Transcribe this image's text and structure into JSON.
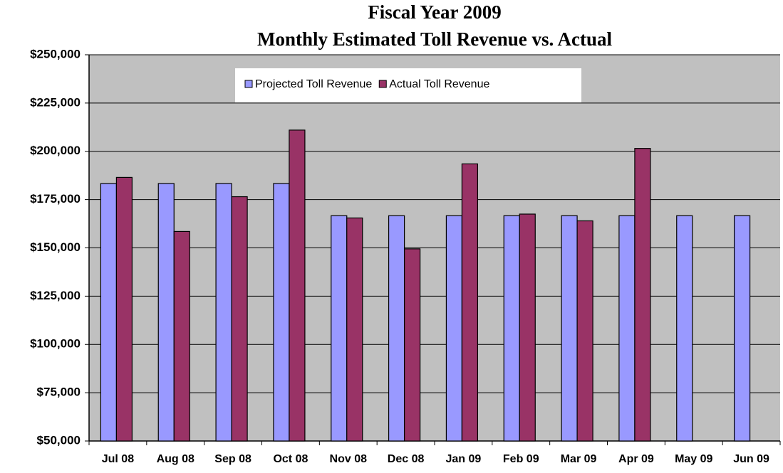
{
  "chart_data": {
    "type": "bar",
    "title": [
      "Fiscal Year 2009",
      "Monthly Estimated Toll Revenue vs. Actual"
    ],
    "categories": [
      "Jul 08",
      "Aug 08",
      "Sep 08",
      "Oct 08",
      "Nov 08",
      "Dec 08",
      "Jan 09",
      "Feb 09",
      "Mar 09",
      "Apr 09",
      "May 09",
      "Jun 09"
    ],
    "series": [
      {
        "name": "Projected Toll Revenue",
        "color": "#9999ff",
        "values": [
          183333,
          183333,
          183333,
          183333,
          166667,
          166667,
          166667,
          166667,
          166667,
          166667,
          166667,
          166667
        ]
      },
      {
        "name": "Actual Toll Revenue",
        "color": "#993366",
        "values": [
          186500,
          158500,
          176500,
          211000,
          165500,
          149500,
          193500,
          167500,
          164000,
          201500,
          null,
          null
        ]
      }
    ],
    "ylim": [
      50000,
      250000
    ],
    "yticks": [
      {
        "value": 50000,
        "label": "$50,000"
      },
      {
        "value": 75000,
        "label": "$75,000"
      },
      {
        "value": 100000,
        "label": "$100,000"
      },
      {
        "value": 125000,
        "label": "$125,000"
      },
      {
        "value": 150000,
        "label": "$150,000"
      },
      {
        "value": 175000,
        "label": "$175,000"
      },
      {
        "value": 200000,
        "label": "$200,000"
      },
      {
        "value": 225000,
        "label": "$225,000"
      },
      {
        "value": 250000,
        "label": "$250,000"
      }
    ],
    "grid": true
  }
}
